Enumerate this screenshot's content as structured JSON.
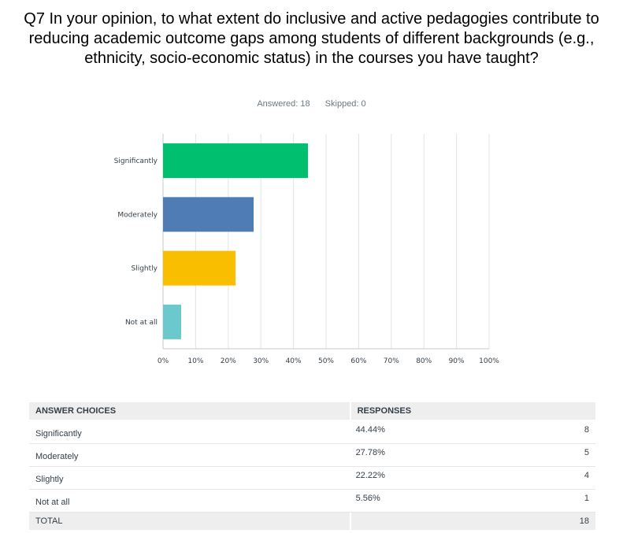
{
  "question": {
    "title": "Q7 In your opinion, to what extent do inclusive and active pedagogies contribute to reducing academic outcome gaps among students of different backgrounds (e.g., ethnicity, socio-economic status) in the courses you have taught?",
    "answered": "Answered: 18",
    "skipped": "Skipped: 0"
  },
  "chart_data": {
    "type": "bar",
    "orientation": "horizontal",
    "categories": [
      "Significantly",
      "Moderately",
      "Slightly",
      "Not at all"
    ],
    "values": [
      44.44,
      27.78,
      22.22,
      5.56
    ],
    "colors": [
      "#00bf6f",
      "#507cb6",
      "#f9be00",
      "#6bc8cd"
    ],
    "xlim": [
      0,
      100
    ],
    "xticks": [
      "0%",
      "10%",
      "20%",
      "30%",
      "40%",
      "50%",
      "60%",
      "70%",
      "80%",
      "90%",
      "100%"
    ],
    "grid": true
  },
  "table": {
    "headers": {
      "choices": "ANSWER CHOICES",
      "responses": "RESPONSES"
    },
    "rows": [
      {
        "choice": "Significantly",
        "percent": "44.44%",
        "count": "8"
      },
      {
        "choice": "Moderately",
        "percent": "27.78%",
        "count": "5"
      },
      {
        "choice": "Slightly",
        "percent": "22.22%",
        "count": "4"
      },
      {
        "choice": "Not at all",
        "percent": "5.56%",
        "count": "1"
      }
    ],
    "total": {
      "label": "TOTAL",
      "count": "18"
    }
  }
}
